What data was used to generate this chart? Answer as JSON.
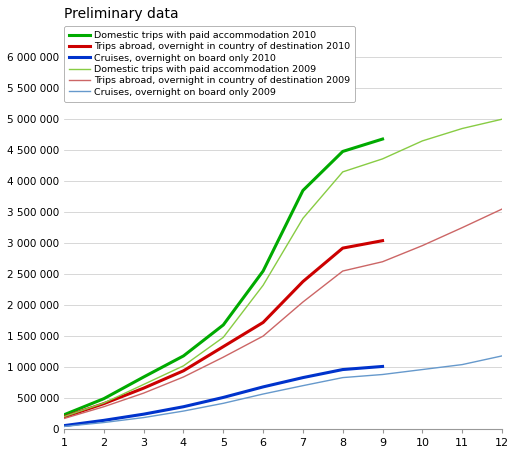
{
  "title": "Preliminary data",
  "months_2010": [
    1,
    2,
    3,
    4,
    5,
    6,
    7,
    8,
    9
  ],
  "months_2009": [
    1,
    2,
    3,
    4,
    5,
    6,
    7,
    8,
    9,
    10,
    11,
    12
  ],
  "domestic_2010": [
    230000,
    490000,
    840000,
    1180000,
    1680000,
    2550000,
    3850000,
    4480000,
    4680000
  ],
  "abroad_2010": [
    195000,
    410000,
    660000,
    940000,
    1330000,
    1720000,
    2380000,
    2920000,
    3040000
  ],
  "cruises_2010": [
    55000,
    140000,
    240000,
    360000,
    510000,
    680000,
    830000,
    960000,
    1010000
  ],
  "domestic_2009": [
    200000,
    420000,
    720000,
    1020000,
    1480000,
    2320000,
    3400000,
    4150000,
    4360000,
    4650000,
    4850000,
    5000000
  ],
  "abroad_2009": [
    170000,
    360000,
    580000,
    840000,
    1160000,
    1500000,
    2050000,
    2550000,
    2700000,
    2960000,
    3250000,
    3550000
  ],
  "cruises_2009": [
    42000,
    105000,
    185000,
    290000,
    415000,
    565000,
    700000,
    830000,
    880000,
    960000,
    1040000,
    1180000
  ],
  "color_domestic_2010": "#00AA00",
  "color_abroad_2010": "#CC0000",
  "color_cruises_2010": "#0033CC",
  "color_domestic_2009": "#88CC44",
  "color_abroad_2009": "#CC6666",
  "color_cruises_2009": "#6699CC",
  "lw_2010": 2.2,
  "lw_2009": 1.0,
  "legend_domestic_2010": "Domestic trips with paid accommodation 2010",
  "legend_abroad_2010": "Trips abroad, overnight in country of destination 2010",
  "legend_cruises_2010": "Cruises, overnight on board only 2010",
  "legend_domestic_2009": "Domestic trips with paid accommodation 2009",
  "legend_abroad_2009": "Trips abroad, overnight in country of destination 2009",
  "legend_cruises_2009": "Cruises, overnight on board only 2009",
  "ylim": [
    0,
    6500000
  ],
  "xlim": [
    1,
    12
  ],
  "yticks": [
    0,
    500000,
    1000000,
    1500000,
    2000000,
    2500000,
    3000000,
    3500000,
    4000000,
    4500000,
    5000000,
    5500000,
    6000000
  ],
  "xticks": [
    1,
    2,
    3,
    4,
    5,
    6,
    7,
    8,
    9,
    10,
    11,
    12
  ],
  "bg_color": "#FFFFFF",
  "grid_color": "#C8C8C8"
}
